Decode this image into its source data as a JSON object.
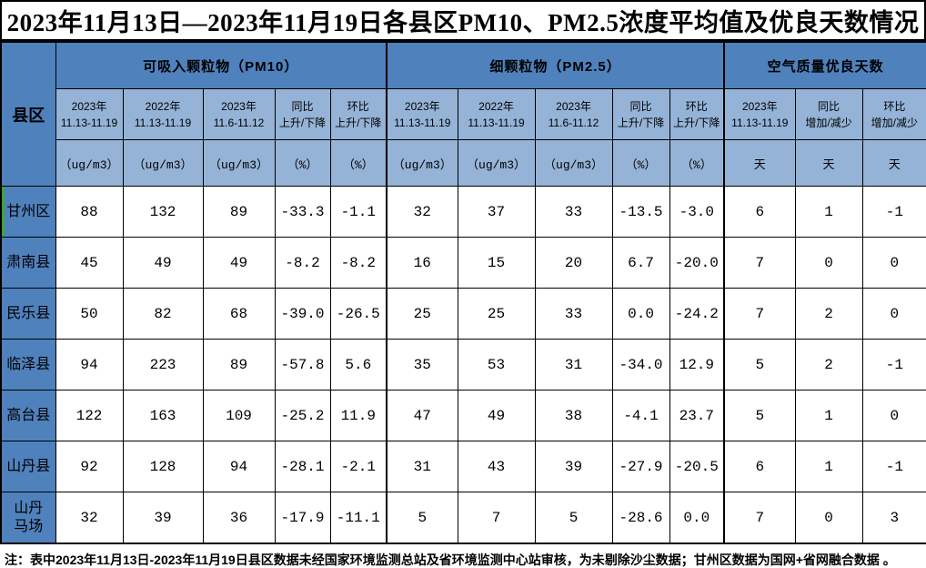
{
  "title": "2023年11月13日—2023年11月19日各县区PM10、PM2.5浓度平均值及优良天数情况",
  "table": {
    "corner_header": "县区",
    "groups": [
      {
        "label": "可吸入颗粒物（PM10）"
      },
      {
        "label": "细颗粒物（PM2.5）"
      },
      {
        "label": "空气质量优良天数"
      }
    ],
    "sub_headers": [
      "2023年\n11.13-11.19",
      "2022年\n11.13-11.19",
      "2023年\n11.6-11.12",
      "同比\n上升/下降",
      "环比\n上升/下降",
      "2023年\n11.13-11.19",
      "2022年\n11.13-11.19",
      "2023年\n11.6-11.12",
      "同比\n上升/下降",
      "环比\n上升/下降",
      "2023年\n11.13-11.19",
      "同比\n增加/减少",
      "环比\n增加/减少"
    ],
    "units": [
      "（ug/m3）",
      "（ug/m3）",
      "（ug/m3）",
      "（%）",
      "（%）",
      "（ug/m3）",
      "（ug/m3）",
      "（ug/m3）",
      "（%）",
      "（%）",
      "天",
      "天",
      "天"
    ],
    "rows": [
      {
        "name": "甘州区",
        "values": [
          "88",
          "132",
          "89",
          "-33.3",
          "-1.1",
          "32",
          "37",
          "33",
          "-13.5",
          "-3.0",
          "6",
          "1",
          "-1"
        ]
      },
      {
        "name": "肃南县",
        "values": [
          "45",
          "49",
          "49",
          "-8.2",
          "-8.2",
          "16",
          "15",
          "20",
          "6.7",
          "-20.0",
          "7",
          "0",
          "0"
        ]
      },
      {
        "name": "民乐县",
        "values": [
          "50",
          "82",
          "68",
          "-39.0",
          "-26.5",
          "25",
          "25",
          "33",
          "0.0",
          "-24.2",
          "7",
          "2",
          "0"
        ]
      },
      {
        "name": "临泽县",
        "values": [
          "94",
          "223",
          "89",
          "-57.8",
          "5.6",
          "35",
          "53",
          "31",
          "-34.0",
          "12.9",
          "5",
          "2",
          "-1"
        ]
      },
      {
        "name": "高台县",
        "values": [
          "122",
          "163",
          "109",
          "-25.2",
          "11.9",
          "47",
          "49",
          "38",
          "-4.1",
          "23.7",
          "5",
          "1",
          "0"
        ]
      },
      {
        "name": "山丹县",
        "values": [
          "92",
          "128",
          "94",
          "-28.1",
          "-2.1",
          "31",
          "43",
          "39",
          "-27.9",
          "-20.5",
          "6",
          "1",
          "-1"
        ]
      },
      {
        "name": "山丹\n马场",
        "values": [
          "32",
          "39",
          "36",
          "-17.9",
          "-11.1",
          "5",
          "7",
          "5",
          "-28.6",
          "0.0",
          "7",
          "0",
          "3"
        ]
      }
    ]
  },
  "footnote": "注：表中2023年11月13日-2023年11月19日县区数据未经国家环境监测总站及省环境监测中心站审核，为未剔除沙尘数据；甘州区数据为国网+省网融合数据 。",
  "colors": {
    "header_blue": "#4F81BD",
    "subheader_blue": "#95B3D7",
    "cell_border": "#000000",
    "row_marker_green": "#3FA33C"
  }
}
